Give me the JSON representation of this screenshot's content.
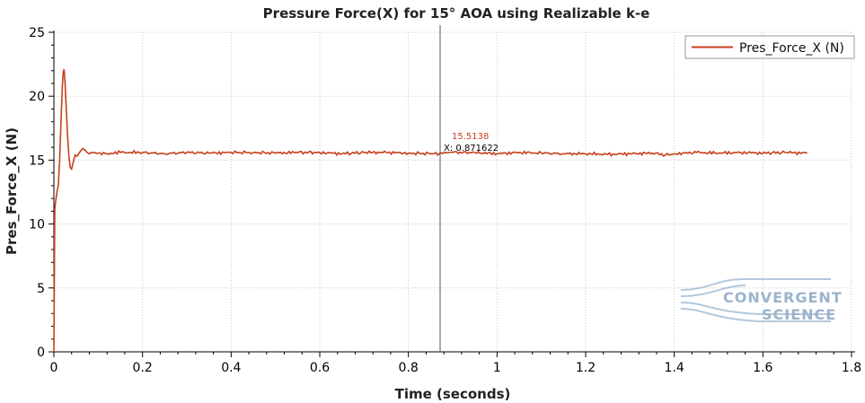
{
  "chart_data": {
    "type": "line",
    "title": "Pressure Force(X) for 15° AOA using Realizable k-e",
    "xlabel": "Time (seconds)",
    "ylabel": "Pres_Force_X (N)",
    "xlim": [
      0,
      1.8
    ],
    "ylim": [
      0,
      25
    ],
    "xticks": [
      0,
      0.2,
      0.4,
      0.6,
      0.8,
      1,
      1.2,
      1.4,
      1.6,
      1.8
    ],
    "yticks": [
      0,
      5,
      10,
      15,
      20,
      25
    ],
    "xtick_labels": [
      "0",
      "0.2",
      "0.4",
      "0.6",
      "0.8",
      "1",
      "1.2",
      "1.4",
      "1.6",
      "1.8"
    ],
    "ytick_labels": [
      "0",
      "5",
      "10",
      "15",
      "20",
      "25"
    ],
    "grid": true,
    "legend_position": "top-right",
    "series": [
      {
        "name": "Pres_Force_X (N)",
        "color": "#c6401d",
        "x": [
          0,
          0.002,
          0.004,
          0.006,
          0.008,
          0.01,
          0.013,
          0.016,
          0.019,
          0.021,
          0.023,
          0.025,
          0.028,
          0.031,
          0.034,
          0.037,
          0.04,
          0.044,
          0.048,
          0.052,
          0.056,
          0.06,
          0.065,
          0.07,
          0.075,
          0.08,
          0.09,
          0.1,
          0.12,
          0.15,
          0.2,
          0.25,
          0.3,
          0.35,
          0.4,
          0.45,
          0.5,
          0.55,
          0.6,
          0.65,
          0.7,
          0.75,
          0.8,
          0.85,
          0.87,
          0.9,
          0.95,
          1.0,
          1.05,
          1.1,
          1.15,
          1.2,
          1.25,
          1.3,
          1.35,
          1.38,
          1.4,
          1.45,
          1.5,
          1.55,
          1.6,
          1.65,
          1.7
        ],
        "y": [
          0,
          11.2,
          11.8,
          12.3,
          12.7,
          13.0,
          15.0,
          18.0,
          20.8,
          21.9,
          22.1,
          21.2,
          19.0,
          16.8,
          15.2,
          14.4,
          14.3,
          14.9,
          15.4,
          15.3,
          15.5,
          15.7,
          15.9,
          15.8,
          15.6,
          15.5,
          15.6,
          15.55,
          15.5,
          15.6,
          15.6,
          15.5,
          15.6,
          15.55,
          15.6,
          15.6,
          15.55,
          15.6,
          15.6,
          15.5,
          15.6,
          15.6,
          15.55,
          15.5,
          15.51,
          15.6,
          15.6,
          15.5,
          15.6,
          15.55,
          15.5,
          15.5,
          15.45,
          15.5,
          15.55,
          15.4,
          15.5,
          15.6,
          15.55,
          15.6,
          15.55,
          15.6,
          15.55
        ]
      }
    ],
    "cursor": {
      "x": 0.871622,
      "y_label": "15.5138",
      "x_label": "X: 0.871622"
    },
    "watermark": {
      "line1": "CONVERGENT",
      "line2": "SCIENCE"
    }
  }
}
